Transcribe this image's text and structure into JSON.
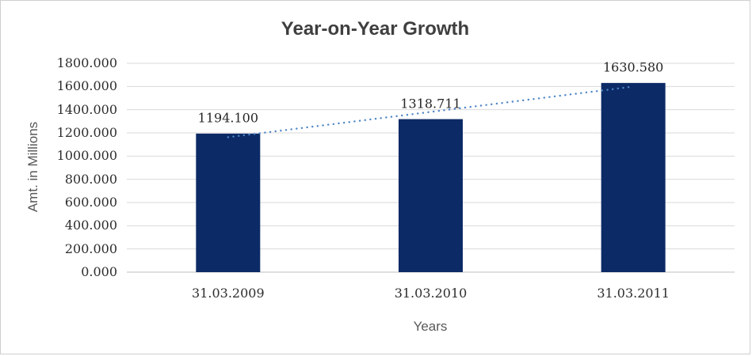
{
  "chart_data": {
    "type": "bar",
    "title": "Year-on-Year Growth",
    "xlabel": "Years",
    "ylabel": "Amt. in Millions",
    "categories": [
      "31.03.2009",
      "31.03.2010",
      "31.03.2011"
    ],
    "values": [
      1194.1,
      1318.711,
      1630.58
    ],
    "data_labels": [
      "1194.100",
      "1318.711",
      "1630.580"
    ],
    "y_ticks": [
      "1800.000",
      "1600.000",
      "1400.000",
      "1200.000",
      "1000.000",
      "800.000",
      "600.000",
      "400.000",
      "200.000",
      "0.000"
    ],
    "ylim": [
      0,
      1800
    ],
    "y_tick_step": 200,
    "grid": true,
    "legend": "none",
    "trendline": {
      "type": "linear",
      "style": "dotted"
    },
    "colors": {
      "bar": "#0c2a66",
      "trendline": "#4e86c8",
      "gridline": "#d9d9d9",
      "axis_line": "#bfbfbf",
      "title_text": "#3f3f3f",
      "tick_text": "#2e2e2e",
      "axis_title_text": "#595959",
      "background": "#ffffff",
      "border": "#cfcfcf"
    }
  }
}
